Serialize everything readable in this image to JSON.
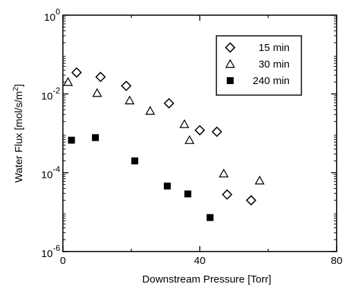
{
  "chart_data": {
    "type": "scatter",
    "xlabel": "Downstream Pressure [Torr]",
    "ylabel": {
      "main": "Water Flux [mol/s/m",
      "sup": "2",
      "close": "]"
    },
    "xlim": [
      0,
      80
    ],
    "ylim_log10": [
      -6,
      0
    ],
    "y_scale": "log",
    "x_ticks": [
      "0",
      "40",
      "80"
    ],
    "x_tick_values": [
      0,
      40,
      80
    ],
    "y_ticks": [
      {
        "value": 0,
        "base": "10",
        "exp": "0"
      },
      {
        "value": -2,
        "base": "10",
        "exp": "-2"
      },
      {
        "value": -4,
        "base": "10",
        "exp": "-4"
      },
      {
        "value": -6,
        "base": "10",
        "exp": "-6"
      }
    ],
    "grid": false,
    "legend_position": "top-right",
    "series": [
      {
        "name": "15 min",
        "marker": "diamond",
        "points": [
          {
            "x": 4,
            "y": 0.035
          },
          {
            "x": 11,
            "y": 0.027
          },
          {
            "x": 18.5,
            "y": 0.016
          },
          {
            "x": 31,
            "y": 0.0058
          },
          {
            "x": 40,
            "y": 0.0012
          },
          {
            "x": 45,
            "y": 0.0011
          },
          {
            "x": 48,
            "y": 2.8e-05
          },
          {
            "x": 55,
            "y": 2e-05
          }
        ]
      },
      {
        "name": "30 min",
        "marker": "triangle",
        "points": [
          {
            "x": 1.5,
            "y": 0.02
          },
          {
            "x": 10,
            "y": 0.0105
          },
          {
            "x": 19.5,
            "y": 0.0068
          },
          {
            "x": 25.5,
            "y": 0.0037
          },
          {
            "x": 35.5,
            "y": 0.0017
          },
          {
            "x": 37,
            "y": 0.00067
          },
          {
            "x": 47,
            "y": 9.5e-05
          },
          {
            "x": 57.5,
            "y": 6.3e-05
          }
        ]
      },
      {
        "name": "240 min",
        "marker": "square-filled",
        "points": [
          {
            "x": 2.5,
            "y": 0.00067
          },
          {
            "x": 9.5,
            "y": 0.00078
          },
          {
            "x": 21,
            "y": 0.0002
          },
          {
            "x": 30.5,
            "y": 4.6e-05
          },
          {
            "x": 36.5,
            "y": 2.9e-05
          },
          {
            "x": 43,
            "y": 7.3e-06
          }
        ]
      }
    ]
  }
}
